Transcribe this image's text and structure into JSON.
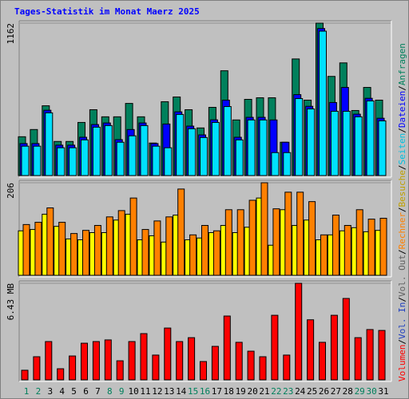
{
  "title": "Tages-Statistik im Monat Maerz 2025",
  "legend_separator": "/",
  "extra_legend": [
    {
      "name": "Vol. In",
      "color": "#2040c0"
    },
    {
      "name": "Vol. Out",
      "color": "#606060"
    }
  ],
  "categories": [
    "1",
    "2",
    "3",
    "4",
    "5",
    "6",
    "7",
    "8",
    "9",
    "10",
    "11",
    "12",
    "13",
    "14",
    "15",
    "16",
    "17",
    "18",
    "19",
    "20",
    "21",
    "22",
    "23",
    "24",
    "25",
    "26",
    "27",
    "28",
    "29",
    "30",
    "31"
  ],
  "category_colors": [
    "#00805c",
    "#00805c",
    "#000000",
    "#000000",
    "#000000",
    "#000000",
    "#000000",
    "#00805c",
    "#00805c",
    "#000000",
    "#000000",
    "#000000",
    "#000000",
    "#000000",
    "#00805c",
    "#00805c",
    "#000000",
    "#000000",
    "#000000",
    "#000000",
    "#000000",
    "#00805c",
    "#00805c",
    "#000000",
    "#000000",
    "#000000",
    "#000000",
    "#000000",
    "#00805c",
    "#00805c",
    "#000000"
  ],
  "chart_data": [
    {
      "type": "bar",
      "ylim": [
        0,
        1162
      ],
      "yticks": [
        1162
      ],
      "series": [
        {
          "name": "Anfragen",
          "color": "#00805c",
          "values": [
            296,
            351,
            532,
            260,
            260,
            405,
            502,
            448,
            448,
            550,
            448,
            248,
            563,
            599,
            502,
            363,
            520,
            799,
            424,
            581,
            593,
            593,
            254,
            889,
            575,
            1162,
            756,
            859,
            496,
            672,
            575
          ]
        },
        {
          "name": "Dateien",
          "color": "#0000ff",
          "values": [
            244,
            244,
            498,
            232,
            232,
            292,
            389,
            401,
            274,
            351,
            401,
            244,
            393,
            486,
            377,
            310,
            425,
            575,
            292,
            444,
            444,
            424,
            254,
            617,
            528,
            1121,
            557,
            672,
            468,
            589,
            437
          ]
        },
        {
          "name": "Seiten",
          "color": "#00e0ff",
          "values": [
            224,
            224,
            478,
            212,
            212,
            272,
            369,
            381,
            254,
            303,
            381,
            224,
            212,
            466,
            357,
            290,
            405,
            526,
            272,
            424,
            424,
            175,
            175,
            587,
            508,
            1101,
            490,
            490,
            448,
            569,
            417
          ]
        }
      ]
    },
    {
      "type": "bar",
      "ylim": [
        0,
        206
      ],
      "yticks": [
        206
      ],
      "series": [
        {
          "name": "Besuche",
          "color": "#ffff00",
          "values": [
            99,
            102,
            136,
            109,
            81,
            79,
            95,
            95,
            123,
            136,
            79,
            88,
            74,
            134,
            79,
            83,
            95,
            111,
            95,
            107,
            172,
            67,
            146,
            111,
            123,
            79,
            90,
            99,
            106,
            97,
            100
          ]
        },
        {
          "name": "Rechner",
          "color": "#ff8000",
          "values": [
            113,
            118,
            150,
            118,
            93,
            100,
            111,
            130,
            144,
            172,
            102,
            121,
            130,
            192,
            90,
            111,
            99,
            146,
            146,
            167,
            206,
            148,
            185,
            185,
            164,
            90,
            134,
            111,
            146,
            125,
            127
          ]
        }
      ]
    },
    {
      "type": "bar",
      "ylim": [
        0,
        6.43
      ],
      "yticks": [
        {
          "value": 6.43,
          "label": "6.43 MB"
        }
      ],
      "series": [
        {
          "name": "Volumen",
          "color": "#ff0000",
          "values": [
            0.64,
            1.54,
            2.55,
            0.74,
            1.59,
            2.44,
            2.55,
            2.66,
            1.27,
            2.55,
            3.08,
            1.65,
            3.45,
            2.55,
            2.81,
            1.22,
            2.23,
            4.25,
            2.5,
            1.91,
            1.54,
            4.3,
            1.65,
            6.43,
            4.0,
            2.5,
            4.3,
            5.42,
            2.81,
            3.35,
            3.29
          ]
        }
      ]
    }
  ]
}
